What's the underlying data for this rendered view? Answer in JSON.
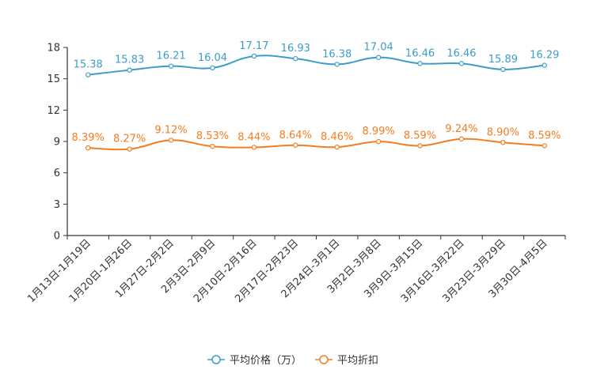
{
  "chart_data": {
    "type": "line",
    "title": "",
    "xlabel": "",
    "ylabel": "",
    "ylim": [
      0,
      18
    ],
    "yticks": [
      0,
      3,
      6,
      9,
      12,
      15,
      18
    ],
    "categories": [
      "1月13日-1月19日",
      "1月20日-1月26日",
      "1月27日-2月2日",
      "2月3日-2月9日",
      "2月10日-2月16日",
      "2月17日-2月23日",
      "2月24日-3月1日",
      "3月2日-3月8日",
      "3月9日-3月15日",
      "3月16日-3月22日",
      "3月23日-3月29日",
      "3月30日-4月5日"
    ],
    "series": [
      {
        "name": "平均价格（万）",
        "color": "#3c9dc8",
        "values": [
          15.38,
          15.83,
          16.21,
          16.04,
          17.17,
          16.93,
          16.38,
          17.04,
          16.46,
          16.46,
          15.89,
          16.29
        ],
        "labels": [
          "15.38",
          "15.83",
          "16.21",
          "16.04",
          "17.17",
          "16.93",
          "16.38",
          "17.04",
          "16.46",
          "16.46",
          "15.89",
          "16.29"
        ]
      },
      {
        "name": "平均折扣",
        "color": "#f57c1f",
        "values": [
          8.39,
          8.27,
          9.12,
          8.53,
          8.44,
          8.64,
          8.46,
          8.99,
          8.59,
          9.24,
          8.9,
          8.59
        ],
        "labels": [
          "8.39%",
          "8.27%",
          "9.12%",
          "8.53%",
          "8.44%",
          "8.64%",
          "8.46%",
          "8.99%",
          "8.59%",
          "9.24%",
          "8.90%",
          "8.59%"
        ]
      }
    ],
    "legend_position": "bottom-center",
    "grid": false
  }
}
